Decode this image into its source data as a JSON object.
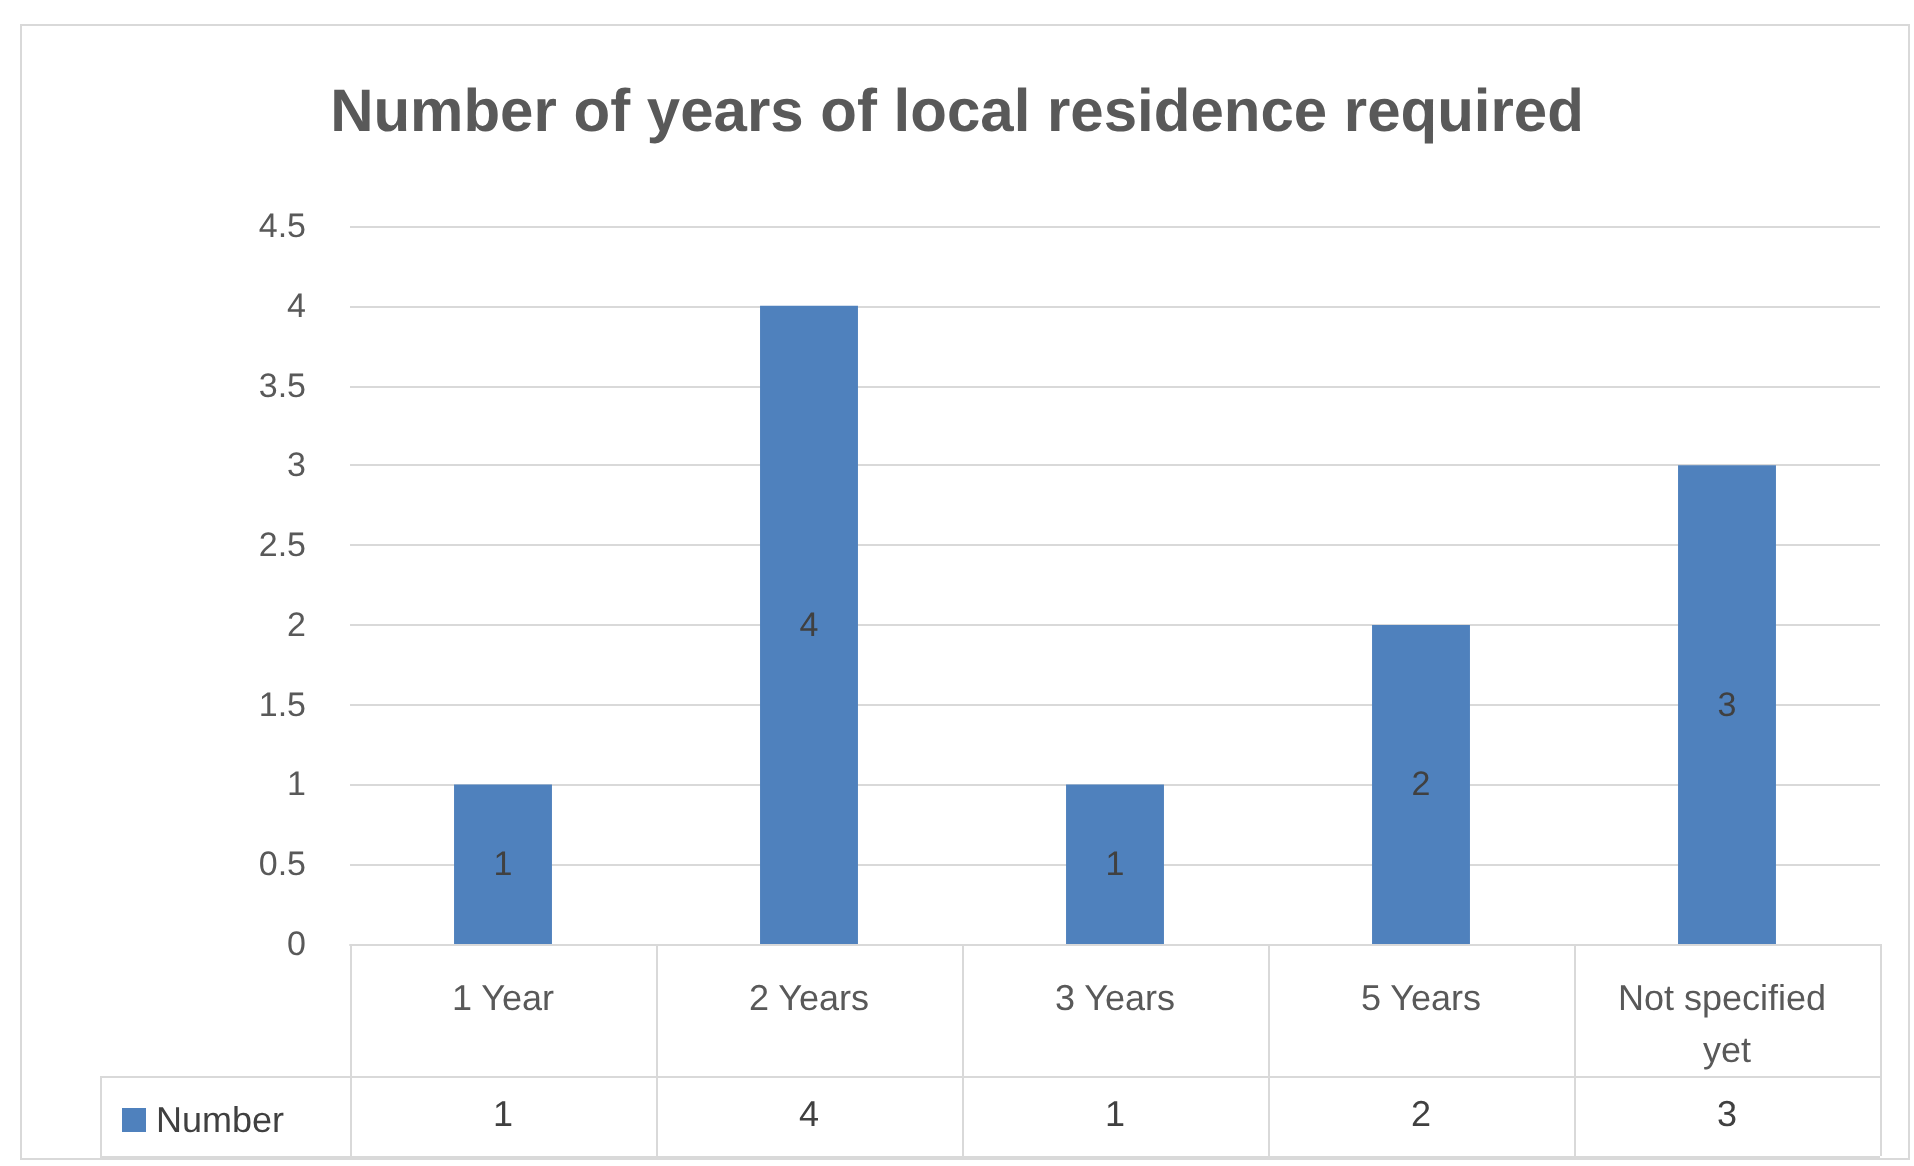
{
  "chart_data": {
    "type": "bar",
    "title": "Number of years of local residence required",
    "categories": [
      "1 Year",
      "2 Years",
      "3 Years",
      "5 Years",
      "Not specified yet"
    ],
    "series": [
      {
        "name": "Number",
        "color": "#4f81bd",
        "values": [
          1,
          4,
          1,
          2,
          3
        ],
        "value_labels": [
          "1",
          "4",
          "1",
          "2",
          "3"
        ]
      }
    ],
    "ylim": [
      0,
      4.5
    ],
    "yticks": [
      0,
      0.5,
      1,
      1.5,
      2,
      2.5,
      3,
      3.5,
      4,
      4.5
    ],
    "grid": "y",
    "data_labels": true,
    "legend": "bottom left"
  }
}
